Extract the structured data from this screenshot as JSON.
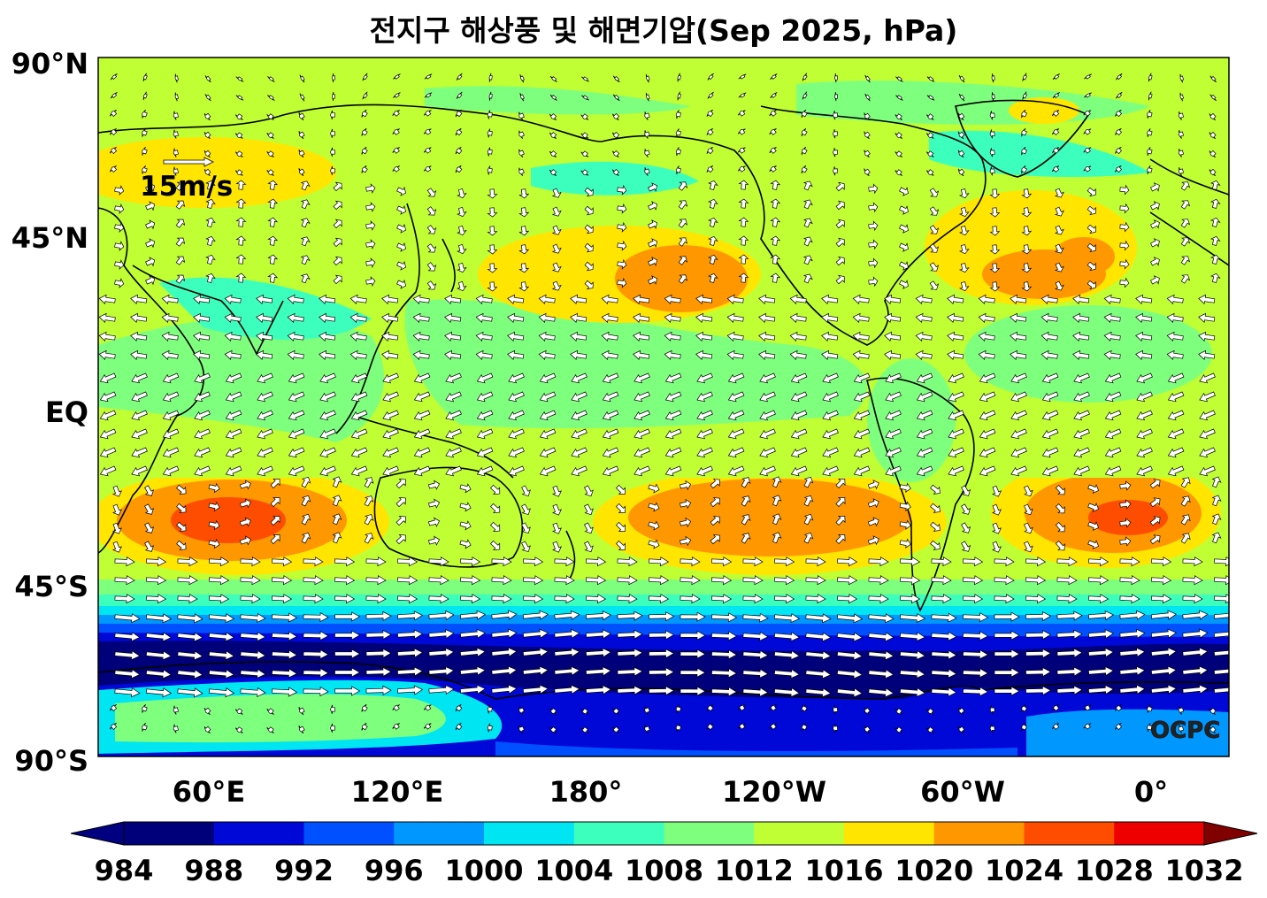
{
  "title": "전지구 해상풍 및 해면기압(Sep 2025, hPa)",
  "reference_vector": {
    "label": "15m/s",
    "speed": 15
  },
  "watermark": "OCPC",
  "axes": {
    "x_ticks": [
      "60°E",
      "120°E",
      "180°",
      "120°W",
      "60°W",
      "0°"
    ],
    "y_ticks": [
      "90°N",
      "45°N",
      "EQ",
      "45°S",
      "90°S"
    ]
  },
  "colorbar": {
    "levels": [
      "984",
      "988",
      "992",
      "996",
      "1000",
      "1004",
      "1008",
      "1012",
      "1016",
      "1020",
      "1024",
      "1028",
      "1032"
    ],
    "colors": [
      "#00007a",
      "#0008d8",
      "#0050ff",
      "#0098ff",
      "#00e5f2",
      "#3dffbd",
      "#7eff7e",
      "#c0ff34",
      "#ffe500",
      "#ff9800",
      "#ff4d00",
      "#ee0000",
      "#800000"
    ],
    "under_color": "#000080",
    "over_color": "#800000"
  },
  "colors": {
    "land_outline": "#000000",
    "arrow_fill": "#ffffff",
    "arrow_edge": "#000000"
  }
}
